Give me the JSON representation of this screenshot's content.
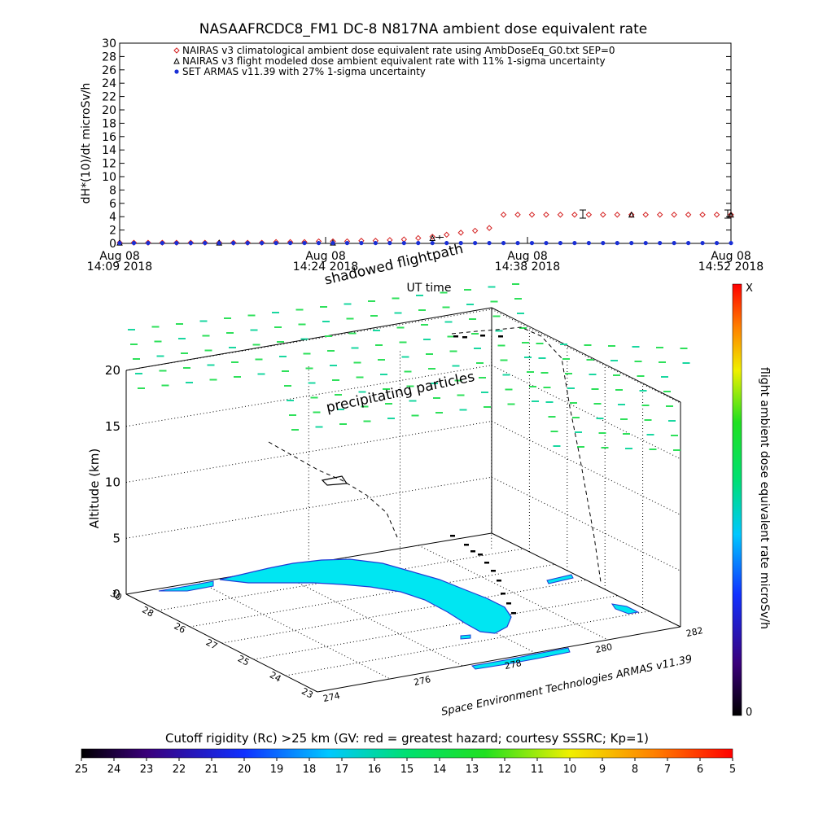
{
  "chart_data": [
    {
      "type": "scatter",
      "title": "NASAAFRCDC8_FM1 DC-8   N817NA ambient dose equivalent rate",
      "ylabel": "dH*(10)/dt microSv/h",
      "xlabel": "UT time",
      "ylim": [
        0,
        30
      ],
      "yticks": [
        "0",
        "2",
        "4",
        "6",
        "8",
        "10",
        "12",
        "14",
        "16",
        "18",
        "20",
        "22",
        "24",
        "26",
        "28",
        "30"
      ],
      "xticks": [
        {
          "date": "Aug 08",
          "time": "14:09 2018"
        },
        {
          "date": "Aug 08",
          "time": "14:24 2018"
        },
        {
          "date": "Aug 08",
          "time": "14:38 2018"
        },
        {
          "date": "Aug 08",
          "time": "14:52 2018"
        }
      ],
      "legend_position": "top-left",
      "series": [
        {
          "name": "NAIRAS v3 climatological ambient dose equivalent rate using AmbDoseEq_G0.txt SEP=0",
          "marker": "diamond",
          "color": "#d42020",
          "x": [
            "14:09",
            "14:10",
            "14:11",
            "14:12",
            "14:13",
            "14:14",
            "14:15",
            "14:16",
            "14:17",
            "14:18",
            "14:19",
            "14:20",
            "14:21",
            "14:22",
            "14:23",
            "14:24",
            "14:25",
            "14:26",
            "14:27",
            "14:28",
            "14:29",
            "14:30",
            "14:31",
            "14:32",
            "14:33",
            "14:34",
            "14:35",
            "14:36",
            "14:37",
            "14:38",
            "14:39",
            "14:40",
            "14:41",
            "14:42",
            "14:43",
            "14:44",
            "14:45",
            "14:46",
            "14:47",
            "14:48",
            "14:49",
            "14:50",
            "14:51",
            "14:52"
          ],
          "y": [
            0.1,
            0.1,
            0.1,
            0.1,
            0.1,
            0.1,
            0.1,
            0.1,
            0.1,
            0.1,
            0.1,
            0.2,
            0.2,
            0.2,
            0.3,
            0.3,
            0.3,
            0.4,
            0.4,
            0.5,
            0.6,
            0.8,
            1.0,
            1.3,
            1.6,
            1.9,
            2.3,
            4.3,
            4.3,
            4.3,
            4.3,
            4.3,
            4.3,
            4.3,
            4.3,
            4.3,
            4.3,
            4.3,
            4.3,
            4.3,
            4.3,
            4.3,
            4.3,
            4.3
          ]
        },
        {
          "name": "NAIRAS v3 flight modeled dose ambient equivalent rate with 11% 1-sigma uncertainty",
          "marker": "triangle",
          "color": "#000000",
          "x": [
            "14:09",
            "14:16",
            "14:24",
            "14:31",
            "14:45",
            "14:52"
          ],
          "y": [
            0.1,
            0.1,
            0.1,
            0.8,
            4.3,
            4.3
          ]
        },
        {
          "name": "SET ARMAS v11.39 with 27% 1-sigma uncertainty",
          "marker": "circle",
          "color": "#1a2fd6",
          "x": [
            "14:09",
            "14:10",
            "14:11",
            "14:12",
            "14:13",
            "14:14",
            "14:15",
            "14:16",
            "14:17",
            "14:18",
            "14:19",
            "14:20",
            "14:21",
            "14:22",
            "14:23",
            "14:24",
            "14:25",
            "14:26",
            "14:27",
            "14:28",
            "14:29",
            "14:30",
            "14:31",
            "14:32",
            "14:33",
            "14:34",
            "14:35",
            "14:36",
            "14:37",
            "14:38",
            "14:39",
            "14:40",
            "14:41",
            "14:42",
            "14:43",
            "14:44",
            "14:45",
            "14:46",
            "14:47",
            "14:48",
            "14:49",
            "14:50",
            "14:51",
            "14:52"
          ],
          "y": [
            0.05,
            0.05,
            0.05,
            0.05,
            0.05,
            0.05,
            0.05,
            0.05,
            0.05,
            0.05,
            0.05,
            0.05,
            0.05,
            0.05,
            0.05,
            0.05,
            0.05,
            0.05,
            0.05,
            0.05,
            0.05,
            0.05,
            0.05,
            0.05,
            0.05,
            0.05,
            0.05,
            0.05,
            0.05,
            0.05,
            0.05,
            0.05,
            0.05,
            0.05,
            0.05,
            0.05,
            0.05,
            0.05,
            0.05,
            0.05,
            0.05,
            0.05,
            0.05,
            0.05
          ]
        }
      ]
    },
    {
      "type": "scatter",
      "zlabel": "Altitude (km)",
      "zticks": [
        "0",
        "5",
        "10",
        "15",
        "20"
      ],
      "zlim": [
        0,
        22
      ],
      "lat_ticks": [
        "30",
        "28",
        "26",
        "27",
        "25",
        "24",
        "23"
      ],
      "lon_ticks": [
        "274",
        "276",
        "278",
        "280",
        "282"
      ],
      "annotations": {
        "top": "shadowed flightpath",
        "middle": "precipitating particles",
        "credit": "Space Environment Technologies ARMAS v11.39"
      },
      "colorbar_right": {
        "label": "flight ambient dose equivalent rate microSv/h",
        "top": "X",
        "bottom": "0"
      },
      "colorbar_bottom": {
        "label": "Cutoff rigidity (Rc) >25 km (GV: red = greatest hazard; courtesy SSSRC; Kp=1)",
        "ticks": [
          "25",
          "24",
          "23",
          "22",
          "21",
          "20",
          "19",
          "18",
          "17",
          "16",
          "15",
          "14",
          "13",
          "12",
          "11",
          "10",
          "9",
          "8",
          "7",
          "6",
          "5"
        ]
      },
      "colors": {
        "land": "#00e6f2",
        "coast": "#1f3cd6",
        "particles": "#2ee05a",
        "flightpath": "#000000"
      }
    }
  ]
}
